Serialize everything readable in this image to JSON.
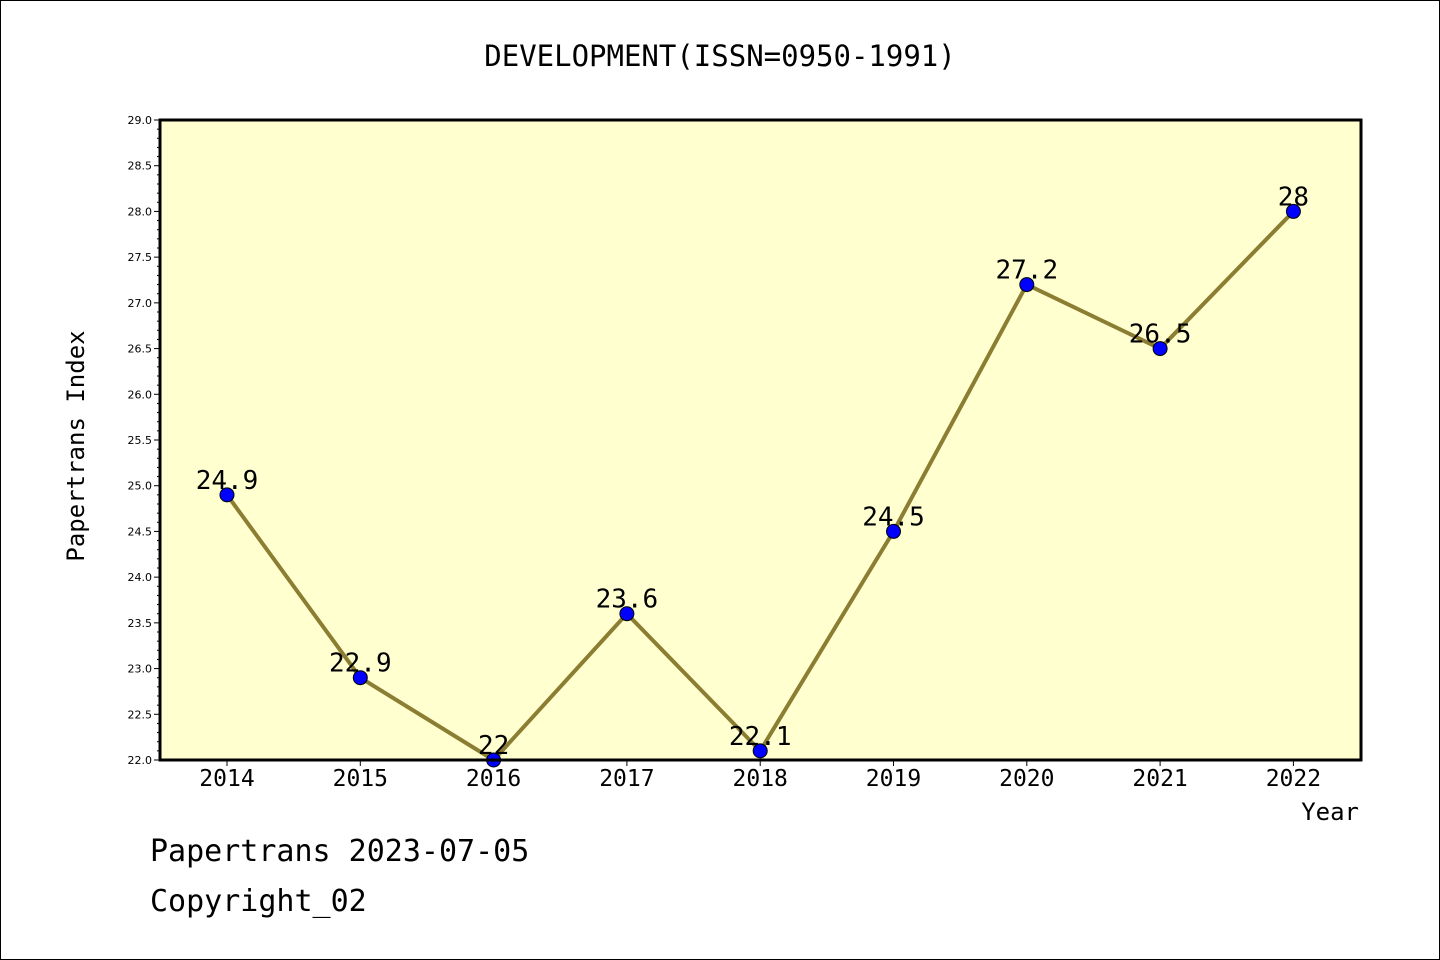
{
  "chart_data": {
    "type": "line",
    "title": "DEVELOPMENT(ISSN=0950-1991)",
    "xlabel": "Year",
    "ylabel": "Papertrans Index",
    "categories": [
      "2014",
      "2015",
      "2016",
      "2017",
      "2018",
      "2019",
      "2020",
      "2021",
      "2022"
    ],
    "series": [
      {
        "values": [
          24.9,
          22.9,
          22,
          23.6,
          22.1,
          24.5,
          27.2,
          26.5,
          28
        ],
        "data_labels": [
          "24.9",
          "22.9",
          "22",
          "23.6",
          "22.1",
          "24.5",
          "27.2",
          "26.5",
          "28"
        ]
      }
    ],
    "ylim": [
      22.0,
      29.0
    ],
    "yticks": [
      "22.0",
      "22.5",
      "23.0",
      "23.5",
      "24.0",
      "24.5",
      "25.0",
      "25.5",
      "26.0",
      "26.5",
      "27.0",
      "27.5",
      "28.0",
      "28.5",
      "29.0"
    ],
    "grid": false,
    "colors": {
      "plot_background": "#ffffd0",
      "line": "#8b7d32",
      "marker": "#0000ff"
    }
  },
  "footer": {
    "line1": "Papertrans 2023-07-05",
    "line2": "Copyright_02"
  }
}
